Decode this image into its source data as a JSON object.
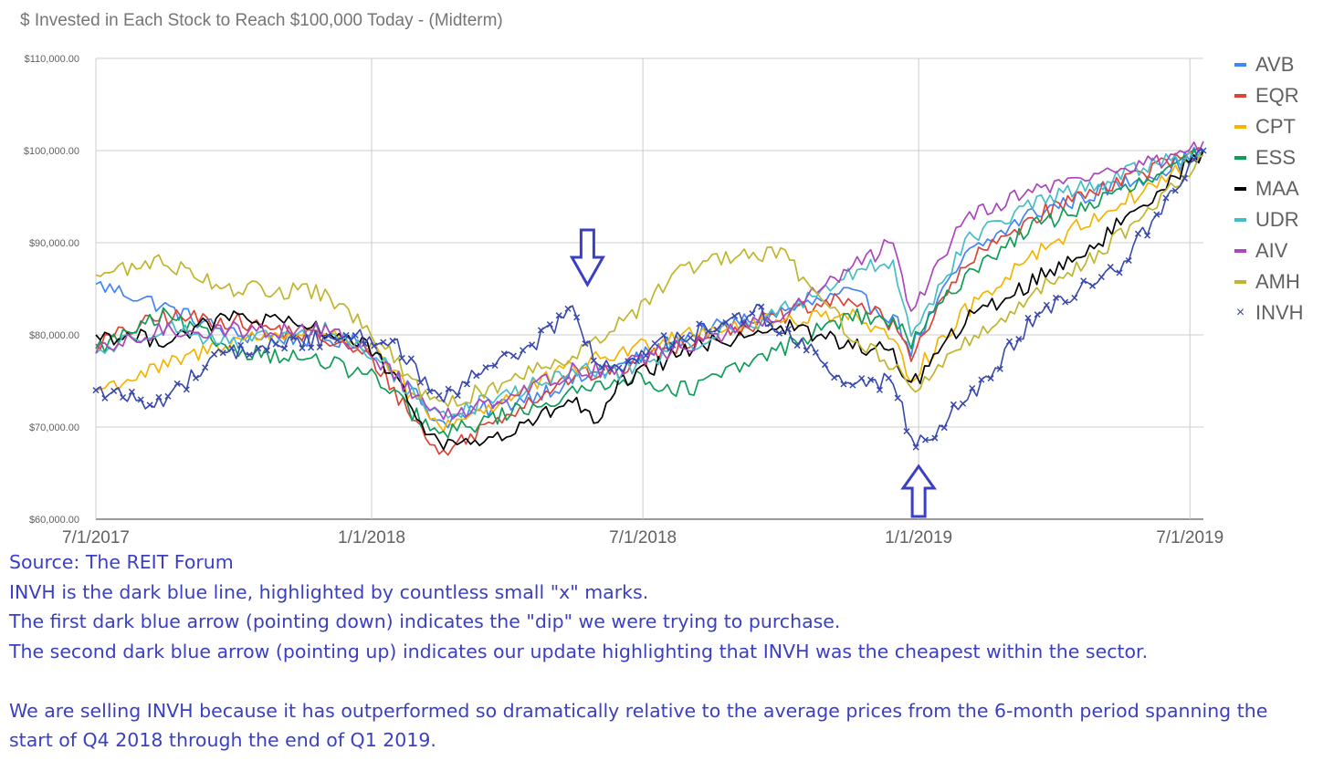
{
  "chart_data": {
    "type": "line",
    "title": "$ Invested in Each Stock to Reach $100,000 Today - (Midterm)",
    "xlabel": "",
    "ylabel": "",
    "ylim": [
      60000,
      110000
    ],
    "y_ticks": [
      60000,
      70000,
      80000,
      90000,
      100000,
      110000
    ],
    "y_tick_labels": [
      "$60,000.00",
      "$70,000.00",
      "$80,000.00",
      "$90,000.00",
      "$100,000.00",
      "$110,000.00"
    ],
    "x_range": [
      "2017-07-01",
      "2019-07-10"
    ],
    "x_ticks": [
      "2017-07-01",
      "2018-01-01",
      "2018-07-01",
      "2019-01-01",
      "2019-07-01"
    ],
    "x_tick_labels": [
      "7/1/2017",
      "1/1/2018",
      "7/1/2018",
      "1/1/2019",
      "7/1/2019"
    ],
    "grid": true,
    "legend_position": "right",
    "series": [
      {
        "name": "AVB",
        "color": "#4285f4",
        "points": [
          [
            "2017-07-01",
            85500
          ],
          [
            "2017-08-01",
            84000
          ],
          [
            "2017-10-01",
            80000
          ],
          [
            "2017-12-01",
            79500
          ],
          [
            "2018-01-01",
            79000
          ],
          [
            "2018-02-15",
            70500
          ],
          [
            "2018-04-01",
            72500
          ],
          [
            "2018-05-15",
            75000
          ],
          [
            "2018-06-15",
            76500
          ],
          [
            "2018-08-01",
            80000
          ],
          [
            "2018-10-01",
            82500
          ],
          [
            "2018-11-15",
            84500
          ],
          [
            "2018-12-15",
            82000
          ],
          [
            "2018-12-27",
            78500
          ],
          [
            "2019-02-01",
            88500
          ],
          [
            "2019-03-15",
            93000
          ],
          [
            "2019-05-01",
            95500
          ],
          [
            "2019-06-15",
            98000
          ],
          [
            "2019-07-10",
            100000
          ]
        ]
      },
      {
        "name": "EQR",
        "color": "#db4437",
        "points": [
          [
            "2017-07-01",
            79000
          ],
          [
            "2017-08-15",
            82000
          ],
          [
            "2017-10-01",
            81500
          ],
          [
            "2017-12-01",
            79500
          ],
          [
            "2018-01-01",
            77500
          ],
          [
            "2018-02-15",
            67000
          ],
          [
            "2018-04-01",
            71500
          ],
          [
            "2018-05-15",
            75500
          ],
          [
            "2018-06-15",
            76000
          ],
          [
            "2018-08-01",
            79500
          ],
          [
            "2018-10-01",
            82000
          ],
          [
            "2018-11-15",
            84000
          ],
          [
            "2018-12-15",
            81000
          ],
          [
            "2018-12-27",
            78000
          ],
          [
            "2019-02-01",
            87500
          ],
          [
            "2019-03-15",
            92500
          ],
          [
            "2019-05-01",
            96000
          ],
          [
            "2019-06-15",
            98500
          ],
          [
            "2019-07-10",
            100000
          ]
        ]
      },
      {
        "name": "CPT",
        "color": "#f4b400",
        "points": [
          [
            "2017-07-01",
            74000
          ],
          [
            "2017-08-15",
            76500
          ],
          [
            "2017-10-01",
            79500
          ],
          [
            "2017-12-01",
            80500
          ],
          [
            "2018-01-01",
            78500
          ],
          [
            "2018-02-15",
            70000
          ],
          [
            "2018-04-01",
            73000
          ],
          [
            "2018-05-15",
            76500
          ],
          [
            "2018-06-15",
            78000
          ],
          [
            "2018-08-01",
            80500
          ],
          [
            "2018-10-01",
            81500
          ],
          [
            "2018-11-15",
            82500
          ],
          [
            "2018-12-15",
            79000
          ],
          [
            "2018-12-27",
            75500
          ],
          [
            "2019-02-01",
            82500
          ],
          [
            "2019-03-15",
            88500
          ],
          [
            "2019-05-01",
            93000
          ],
          [
            "2019-06-15",
            97000
          ],
          [
            "2019-07-10",
            100000
          ]
        ]
      },
      {
        "name": "ESS",
        "color": "#0f9d58",
        "points": [
          [
            "2017-07-01",
            78500
          ],
          [
            "2017-08-15",
            82000
          ],
          [
            "2017-10-01",
            78500
          ],
          [
            "2017-12-01",
            77000
          ],
          [
            "2018-01-01",
            75500
          ],
          [
            "2018-02-15",
            69000
          ],
          [
            "2018-04-01",
            71500
          ],
          [
            "2018-05-15",
            73500
          ],
          [
            "2018-06-15",
            75500
          ],
          [
            "2018-08-01",
            74000
          ],
          [
            "2018-10-01",
            78500
          ],
          [
            "2018-11-15",
            82000
          ],
          [
            "2018-12-15",
            81500
          ],
          [
            "2018-12-27",
            79000
          ],
          [
            "2019-02-01",
            86500
          ],
          [
            "2019-03-15",
            91500
          ],
          [
            "2019-05-01",
            94500
          ],
          [
            "2019-06-15",
            97500
          ],
          [
            "2019-07-10",
            100000
          ]
        ]
      },
      {
        "name": "MAA",
        "color": "#000000",
        "points": [
          [
            "2017-07-01",
            80000
          ],
          [
            "2017-08-15",
            79500
          ],
          [
            "2017-10-01",
            82000
          ],
          [
            "2017-12-01",
            80500
          ],
          [
            "2018-01-01",
            78500
          ],
          [
            "2018-02-15",
            68000
          ],
          [
            "2018-04-01",
            69000
          ],
          [
            "2018-05-15",
            73000
          ],
          [
            "2018-06-01",
            70000
          ],
          [
            "2018-06-15",
            74500
          ],
          [
            "2018-08-01",
            78500
          ],
          [
            "2018-10-01",
            81000
          ],
          [
            "2018-11-15",
            79000
          ],
          [
            "2018-12-15",
            78000
          ],
          [
            "2018-12-27",
            74500
          ],
          [
            "2019-02-01",
            81500
          ],
          [
            "2019-03-15",
            85500
          ],
          [
            "2019-05-01",
            90000
          ],
          [
            "2019-06-15",
            96500
          ],
          [
            "2019-07-10",
            100000
          ]
        ]
      },
      {
        "name": "UDR",
        "color": "#46bdc6",
        "points": [
          [
            "2017-07-01",
            78000
          ],
          [
            "2017-08-15",
            81000
          ],
          [
            "2017-10-01",
            79000
          ],
          [
            "2017-12-01",
            80500
          ],
          [
            "2018-01-01",
            78000
          ],
          [
            "2018-02-15",
            71000
          ],
          [
            "2018-04-01",
            73500
          ],
          [
            "2018-05-15",
            76000
          ],
          [
            "2018-06-15",
            76000
          ],
          [
            "2018-08-01",
            79000
          ],
          [
            "2018-10-01",
            82500
          ],
          [
            "2018-11-15",
            86500
          ],
          [
            "2018-12-15",
            88000
          ],
          [
            "2018-12-27",
            80000
          ],
          [
            "2019-02-01",
            90000
          ],
          [
            "2019-03-15",
            94000
          ],
          [
            "2019-05-01",
            96500
          ],
          [
            "2019-06-15",
            99000
          ],
          [
            "2019-07-10",
            100000
          ]
        ]
      },
      {
        "name": "AIV",
        "color": "#ab47bc",
        "points": [
          [
            "2017-07-01",
            78000
          ],
          [
            "2017-08-15",
            80500
          ],
          [
            "2017-10-01",
            80500
          ],
          [
            "2017-12-01",
            80500
          ],
          [
            "2018-01-01",
            78000
          ],
          [
            "2018-02-15",
            71000
          ],
          [
            "2018-04-01",
            73500
          ],
          [
            "2018-05-15",
            76000
          ],
          [
            "2018-06-15",
            76500
          ],
          [
            "2018-08-01",
            79000
          ],
          [
            "2018-10-01",
            82000
          ],
          [
            "2018-11-15",
            87000
          ],
          [
            "2018-12-15",
            90000
          ],
          [
            "2018-12-27",
            82500
          ],
          [
            "2019-02-01",
            93000
          ],
          [
            "2019-03-15",
            95500
          ],
          [
            "2019-05-01",
            97500
          ],
          [
            "2019-06-15",
            99000
          ],
          [
            "2019-07-10",
            101000
          ]
        ]
      },
      {
        "name": "AMH",
        "color": "#c0b52e",
        "points": [
          [
            "2017-07-01",
            86500
          ],
          [
            "2017-08-15",
            88000
          ],
          [
            "2017-10-01",
            85000
          ],
          [
            "2017-12-01",
            84500
          ],
          [
            "2018-01-01",
            80000
          ],
          [
            "2018-02-15",
            72000
          ],
          [
            "2018-04-01",
            75000
          ],
          [
            "2018-05-15",
            78000
          ],
          [
            "2018-06-15",
            81000
          ],
          [
            "2018-08-01",
            87500
          ],
          [
            "2018-10-01",
            89000
          ],
          [
            "2018-11-15",
            80500
          ],
          [
            "2018-12-15",
            76500
          ],
          [
            "2018-12-27",
            74000
          ],
          [
            "2019-02-01",
            79000
          ],
          [
            "2019-03-15",
            84000
          ],
          [
            "2019-05-01",
            89000
          ],
          [
            "2019-06-15",
            95000
          ],
          [
            "2019-07-10",
            99500
          ]
        ]
      },
      {
        "name": "INVH",
        "color": "#3949ab",
        "marker": "x",
        "points": [
          [
            "2017-07-01",
            74000
          ],
          [
            "2017-08-15",
            72500
          ],
          [
            "2017-09-15",
            77500
          ],
          [
            "2017-11-01",
            79000
          ],
          [
            "2017-12-15",
            80000
          ],
          [
            "2018-01-15",
            79500
          ],
          [
            "2018-02-15",
            72500
          ],
          [
            "2018-03-15",
            76000
          ],
          [
            "2018-04-15",
            78500
          ],
          [
            "2018-05-15",
            82500
          ],
          [
            "2018-06-01",
            77000
          ],
          [
            "2018-06-15",
            76500
          ],
          [
            "2018-07-15",
            79000
          ],
          [
            "2018-09-15",
            82500
          ],
          [
            "2018-10-15",
            79000
          ],
          [
            "2018-11-15",
            74500
          ],
          [
            "2018-12-15",
            75000
          ],
          [
            "2018-12-27",
            68500
          ],
          [
            "2019-01-15",
            70000
          ],
          [
            "2019-02-15",
            75000
          ],
          [
            "2019-03-15",
            81000
          ],
          [
            "2019-04-15",
            84500
          ],
          [
            "2019-05-15",
            87500
          ],
          [
            "2019-06-15",
            94500
          ],
          [
            "2019-07-10",
            100000
          ]
        ]
      }
    ],
    "annotations": [
      {
        "type": "arrow",
        "direction": "down",
        "at": "2018-05-25",
        "description": "dip we were trying to purchase"
      },
      {
        "type": "arrow",
        "direction": "up",
        "at": "2019-01-01",
        "description": "update: INVH cheapest within sector"
      }
    ]
  },
  "caption": {
    "line1": "Source: The REIT Forum",
    "line2": "INVH is the dark blue line, highlighted by countless small \"x\" marks.",
    "line3": "The first dark blue arrow (pointing down) indicates the \"dip\" we were trying to purchase.",
    "line4": "The second dark blue arrow (pointing up) indicates our update highlighting that INVH was the cheapest within the sector.",
    "line5": "We are selling INVH because it has outperformed so dramatically relative to the average prices from the 6-month period spanning the",
    "line6": "start of Q4 2018 through the end of Q1 2019."
  }
}
